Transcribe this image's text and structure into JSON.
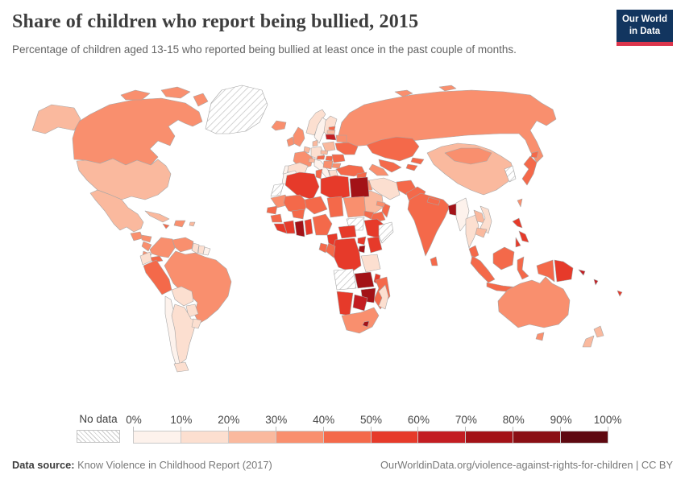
{
  "header": {
    "title": "Share of children who report being bullied, 2015",
    "subtitle": "Percentage of children aged 13-15 who reported being bullied at least once in the past couple of months.",
    "logo": {
      "line1": "Our World",
      "line2": "in Data",
      "bg": "#12355f",
      "accent": "#dc354c"
    }
  },
  "legend": {
    "no_data_label": "No data",
    "tick_labels": [
      "0%",
      "10%",
      "20%",
      "30%",
      "40%",
      "50%",
      "60%",
      "70%",
      "80%",
      "90%",
      "100%"
    ]
  },
  "footer": {
    "source_label": "Data source:",
    "source_text": " Know Violence in Childhood Report (2017)",
    "url_text": "OurWorldinData.org/violence-against-rights-for-children | CC BY"
  },
  "chart_data": {
    "type": "choropleth",
    "title": "Share of children who report being bullied, 2015",
    "unit": "%",
    "scale": {
      "min": 0,
      "max": 100,
      "bins": 10,
      "colors": [
        "#fdf2ec",
        "#fcdfd0",
        "#fab99e",
        "#f98f6e",
        "#f4694a",
        "#e63a2a",
        "#c31d22",
        "#a31217",
        "#8a0f14",
        "#5e0810"
      ],
      "bin_ranges": [
        "0-10%",
        "10-20%",
        "20-30%",
        "30-40%",
        "40-50%",
        "50-60%",
        "60-70%",
        "70-80%",
        "80-90%",
        "90-100%"
      ],
      "no_data_style": "diagonal-hatch"
    },
    "countries": [
      {
        "id": "usa",
        "name": "United States",
        "bin": 2
      },
      {
        "id": "canada",
        "name": "Canada",
        "bin": 3
      },
      {
        "id": "greenland",
        "name": "Greenland",
        "bin": null
      },
      {
        "id": "mexico",
        "name": "Mexico",
        "bin": 2
      },
      {
        "id": "guatemala",
        "name": "Guatemala",
        "bin": 3
      },
      {
        "id": "honduras",
        "name": "Honduras",
        "bin": 3
      },
      {
        "id": "nicaragua",
        "name": "Nicaragua",
        "bin": 3
      },
      {
        "id": "costa-rica",
        "name": "Costa Rica",
        "bin": 3
      },
      {
        "id": "panama",
        "name": "Panama",
        "bin": 4
      },
      {
        "id": "cuba",
        "name": "Cuba",
        "bin": 2
      },
      {
        "id": "hispaniola",
        "name": "Haiti / Dominican Republic",
        "bin": 3
      },
      {
        "id": "jamaica",
        "name": "Jamaica",
        "bin": 4
      },
      {
        "id": "puerto-rico",
        "name": "Puerto Rico",
        "bin": 2
      },
      {
        "id": "colombia",
        "name": "Colombia",
        "bin": 3
      },
      {
        "id": "venezuela",
        "name": "Venezuela",
        "bin": 3
      },
      {
        "id": "guyana",
        "name": "Guyana",
        "bin": 1
      },
      {
        "id": "suriname",
        "name": "Suriname",
        "bin": 1
      },
      {
        "id": "french-guiana",
        "name": "French Guiana",
        "bin": 0
      },
      {
        "id": "ecuador",
        "name": "Ecuador",
        "bin": 1
      },
      {
        "id": "peru",
        "name": "Peru",
        "bin": 4
      },
      {
        "id": "brazil",
        "name": "Brazil",
        "bin": 3
      },
      {
        "id": "bolivia",
        "name": "Bolivia",
        "bin": 1
      },
      {
        "id": "paraguay",
        "name": "Paraguay",
        "bin": 1
      },
      {
        "id": "chile",
        "name": "Chile",
        "bin": 0
      },
      {
        "id": "argentina",
        "name": "Argentina",
        "bin": 1
      },
      {
        "id": "uruguay",
        "name": "Uruguay",
        "bin": 1
      },
      {
        "id": "iceland",
        "name": "Iceland",
        "bin": 3
      },
      {
        "id": "united-kingdom",
        "name": "United Kingdom",
        "bin": 3
      },
      {
        "id": "ireland",
        "name": "Ireland",
        "bin": 3
      },
      {
        "id": "norway",
        "name": "Norway",
        "bin": 1
      },
      {
        "id": "sweden",
        "name": "Sweden",
        "bin": 0
      },
      {
        "id": "finland",
        "name": "Finland",
        "bin": 1
      },
      {
        "id": "denmark",
        "name": "Denmark",
        "bin": 2
      },
      {
        "id": "germany",
        "name": "Germany",
        "bin": 1
      },
      {
        "id": "benelux",
        "name": "Belgium / Netherlands",
        "bin": 2
      },
      {
        "id": "france",
        "name": "France",
        "bin": 3
      },
      {
        "id": "spain",
        "name": "Spain",
        "bin": 1
      },
      {
        "id": "portugal",
        "name": "Portugal",
        "bin": 0
      },
      {
        "id": "italy",
        "name": "Italy",
        "bin": 0
      },
      {
        "id": "switzerland",
        "name": "Switzerland",
        "bin": 2
      },
      {
        "id": "czechia",
        "name": "Czechia",
        "bin": 2
      },
      {
        "id": "poland",
        "name": "Poland",
        "bin": 2
      },
      {
        "id": "austria",
        "name": "Austria",
        "bin": 4
      },
      {
        "id": "hungary",
        "name": "Hungary",
        "bin": 4
      },
      {
        "id": "balkans",
        "name": "Serbia / Bosnia / Croatia",
        "bin": 3
      },
      {
        "id": "albania",
        "name": "Albania",
        "bin": 4
      },
      {
        "id": "greece",
        "name": "Greece",
        "bin": 1
      },
      {
        "id": "bulgaria",
        "name": "Bulgaria",
        "bin": 3
      },
      {
        "id": "romania",
        "name": "Romania",
        "bin": 4
      },
      {
        "id": "estonia",
        "name": "Estonia",
        "bin": 4
      },
      {
        "id": "latvia",
        "name": "Latvia",
        "bin": 2
      },
      {
        "id": "lithuania",
        "name": "Lithuania",
        "bin": 6
      },
      {
        "id": "belarus",
        "name": "Belarus",
        "bin": 3
      },
      {
        "id": "ukraine",
        "name": "Ukraine",
        "bin": 4
      },
      {
        "id": "moldova",
        "name": "Moldova",
        "bin": 4
      },
      {
        "id": "russia",
        "name": "Russia",
        "bin": 3
      },
      {
        "id": "kazakhstan",
        "name": "Kazakhstan",
        "bin": 4
      },
      {
        "id": "uzbekistan",
        "name": "Uzbekistan",
        "bin": 4
      },
      {
        "id": "turkmenistan",
        "name": "Turkmenistan",
        "bin": 3
      },
      {
        "id": "kyrgyzstan",
        "name": "Kyrgyzstan",
        "bin": 4
      },
      {
        "id": "tajikistan",
        "name": "Tajikistan",
        "bin": 4
      },
      {
        "id": "turkey",
        "name": "Turkey",
        "bin": 4
      },
      {
        "id": "syria",
        "name": "Syria",
        "bin": 4
      },
      {
        "id": "iraq",
        "name": "Iraq",
        "bin": 3
      },
      {
        "id": "jordan-israel",
        "name": "Jordan / Israel",
        "bin": 5
      },
      {
        "id": "saudi-arabia",
        "name": "Saudi Arabia",
        "bin": 2
      },
      {
        "id": "yemen",
        "name": "Yemen",
        "bin": 4
      },
      {
        "id": "oman",
        "name": "Oman",
        "bin": 4
      },
      {
        "id": "uae",
        "name": "United Arab Emirates",
        "bin": 3
      },
      {
        "id": "iran",
        "name": "Iran",
        "bin": 1
      },
      {
        "id": "afghanistan",
        "name": "Afghanistan",
        "bin": 4
      },
      {
        "id": "pakistan",
        "name": "Pakistan",
        "bin": 4
      },
      {
        "id": "india",
        "name": "India",
        "bin": 4
      },
      {
        "id": "nepal",
        "name": "Nepal",
        "bin": 4
      },
      {
        "id": "bangladesh",
        "name": "Bangladesh",
        "bin": 7
      },
      {
        "id": "sri-lanka",
        "name": "Sri Lanka",
        "bin": 4
      },
      {
        "id": "myanmar",
        "name": "Myanmar",
        "bin": 0
      },
      {
        "id": "thailand",
        "name": "Thailand",
        "bin": 1
      },
      {
        "id": "laos",
        "name": "Laos",
        "bin": 2
      },
      {
        "id": "vietnam",
        "name": "Vietnam",
        "bin": 1
      },
      {
        "id": "cambodia",
        "name": "Cambodia",
        "bin": 2
      },
      {
        "id": "malaysia",
        "name": "Malaysia",
        "bin": 4
      },
      {
        "id": "indonesia",
        "name": "Indonesia",
        "bin": 4
      },
      {
        "id": "philippines",
        "name": "Philippines",
        "bin": 5
      },
      {
        "id": "taiwan",
        "name": "Taiwan",
        "bin": 3
      },
      {
        "id": "korea",
        "name": "Korea",
        "bin": null
      },
      {
        "id": "japan",
        "name": "Japan",
        "bin": 4
      },
      {
        "id": "china",
        "name": "China",
        "bin": 2
      },
      {
        "id": "mongolia",
        "name": "Mongolia",
        "bin": 3
      },
      {
        "id": "papua-new-guinea",
        "name": "Papua New Guinea",
        "bin": 5
      },
      {
        "id": "solomon-islands",
        "name": "Solomon Islands",
        "bin": 6
      },
      {
        "id": "vanuatu",
        "name": "Vanuatu",
        "bin": 6
      },
      {
        "id": "fiji",
        "name": "Fiji",
        "bin": 5
      },
      {
        "id": "australia",
        "name": "Australia",
        "bin": 3
      },
      {
        "id": "new-zealand",
        "name": "New Zealand",
        "bin": 2
      },
      {
        "id": "morocco",
        "name": "Morocco",
        "bin": 0
      },
      {
        "id": "western-sahara",
        "name": "Western Sahara",
        "bin": null
      },
      {
        "id": "algeria",
        "name": "Algeria",
        "bin": 5
      },
      {
        "id": "tunisia",
        "name": "Tunisia",
        "bin": 4
      },
      {
        "id": "libya",
        "name": "Libya",
        "bin": 5
      },
      {
        "id": "egypt",
        "name": "Egypt",
        "bin": 7
      },
      {
        "id": "mauritania",
        "name": "Mauritania",
        "bin": 3
      },
      {
        "id": "mali",
        "name": "Mali",
        "bin": 4
      },
      {
        "id": "senegal",
        "name": "Senegal",
        "bin": 4
      },
      {
        "id": "guinea",
        "name": "Guinea",
        "bin": 4
      },
      {
        "id": "sierra-leone-liberia",
        "name": "Sierra Leone / Liberia",
        "bin": 5
      },
      {
        "id": "cote-divoire",
        "name": "Côte d'Ivoire",
        "bin": 5
      },
      {
        "id": "ghana",
        "name": "Ghana",
        "bin": 7
      },
      {
        "id": "togo-benin",
        "name": "Togo / Benin",
        "bin": 5
      },
      {
        "id": "burkina-faso",
        "name": "Burkina Faso",
        "bin": 4
      },
      {
        "id": "niger",
        "name": "Niger",
        "bin": 4
      },
      {
        "id": "nigeria",
        "name": "Nigeria",
        "bin": 4
      },
      {
        "id": "chad",
        "name": "Chad",
        "bin": 4
      },
      {
        "id": "sudan",
        "name": "Sudan",
        "bin": 3
      },
      {
        "id": "south-sudan",
        "name": "South Sudan",
        "bin": null
      },
      {
        "id": "eritrea",
        "name": "Eritrea",
        "bin": 4
      },
      {
        "id": "ethiopia",
        "name": "Ethiopia",
        "bin": 5
      },
      {
        "id": "somalia",
        "name": "Somalia",
        "bin": null
      },
      {
        "id": "cameroon",
        "name": "Cameroon",
        "bin": 5
      },
      {
        "id": "central-african-republic",
        "name": "Central African Republic",
        "bin": 5
      },
      {
        "id": "uganda",
        "name": "Uganda",
        "bin": 5
      },
      {
        "id": "kenya",
        "name": "Kenya",
        "bin": 5
      },
      {
        "id": "rwanda-burundi",
        "name": "Rwanda / Burundi",
        "bin": 7
      },
      {
        "id": "dr-congo",
        "name": "Democratic Republic of Congo",
        "bin": 5
      },
      {
        "id": "congo",
        "name": "Congo",
        "bin": 4
      },
      {
        "id": "gabon",
        "name": "Gabon",
        "bin": 4
      },
      {
        "id": "tanzania",
        "name": "Tanzania",
        "bin": 1
      },
      {
        "id": "angola",
        "name": "Angola",
        "bin": null
      },
      {
        "id": "zambia",
        "name": "Zambia",
        "bin": 7
      },
      {
        "id": "malawi",
        "name": "Malawi",
        "bin": 5
      },
      {
        "id": "mozambique",
        "name": "Mozambique",
        "bin": 4
      },
      {
        "id": "zimbabwe",
        "name": "Zimbabwe",
        "bin": 7
      },
      {
        "id": "botswana",
        "name": "Botswana",
        "bin": 6
      },
      {
        "id": "namibia",
        "name": "Namibia",
        "bin": 5
      },
      {
        "id": "south-africa",
        "name": "South Africa",
        "bin": 3
      },
      {
        "id": "lesotho",
        "name": "Lesotho",
        "bin": 7
      },
      {
        "id": "madagascar",
        "name": "Madagascar",
        "bin": 1
      }
    ]
  }
}
